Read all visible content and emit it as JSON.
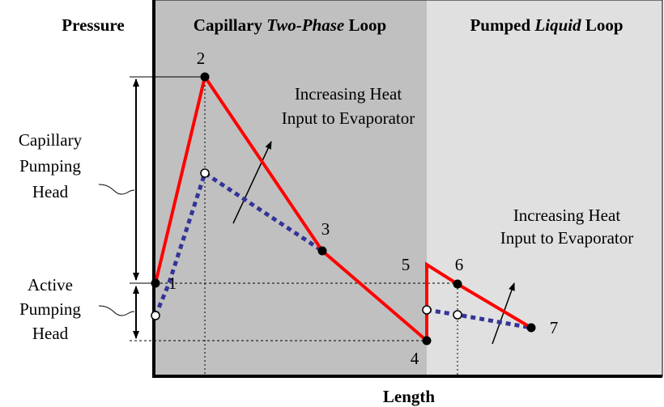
{
  "axis": {
    "y_label": "Pressure",
    "x_label": "Length"
  },
  "regions": [
    {
      "prefix": "Capillary",
      "emphasis": "Two-Phase",
      "suffix": "Loop"
    },
    {
      "prefix": "Pumped",
      "emphasis": "Liquid",
      "suffix": "Loop"
    }
  ],
  "annotations": [
    {
      "lines": [
        "Increasing Heat",
        "Input to Evaporator"
      ]
    },
    {
      "lines": [
        "Increasing Heat",
        "Input to Evaporator"
      ]
    }
  ],
  "heads": [
    {
      "lines": [
        "Capillary",
        "Pumping",
        "Head"
      ]
    },
    {
      "lines": [
        "Active",
        "Pumping",
        "Head"
      ]
    }
  ],
  "points": [
    "1",
    "2",
    "3",
    "4",
    "5",
    "6",
    "7"
  ]
}
